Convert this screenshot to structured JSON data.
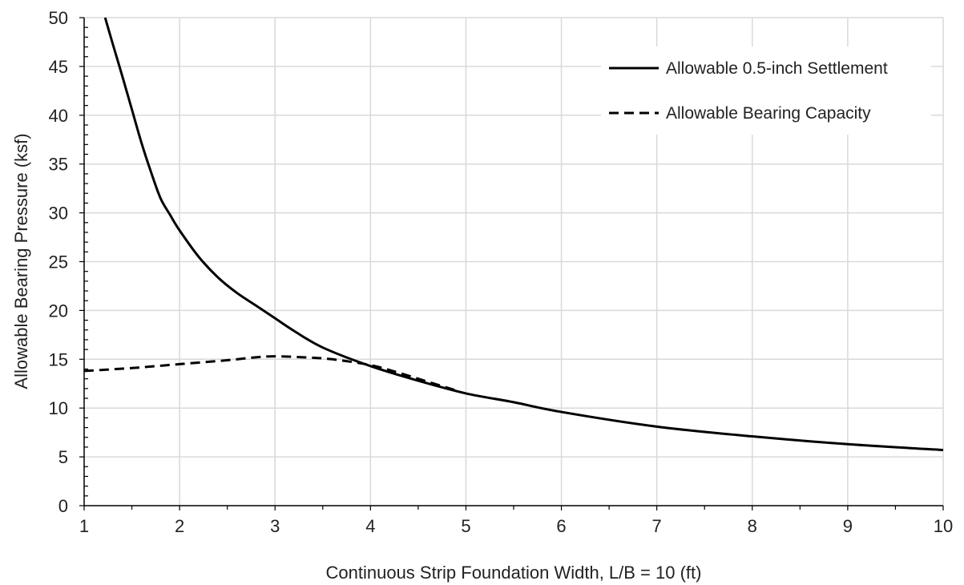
{
  "chart_data": {
    "type": "line",
    "title": "",
    "xlabel": "Continuous Strip Foundation Width, L/B = 10 (ft)",
    "ylabel": "Allowable Bearing Pressure (ksf)",
    "xlim": [
      1,
      10
    ],
    "ylim": [
      0,
      50
    ],
    "x_ticks": [
      "1",
      "2",
      "3",
      "4",
      "5",
      "6",
      "7",
      "8",
      "9",
      "10"
    ],
    "y_ticks": [
      "0",
      "5",
      "10",
      "15",
      "20",
      "25",
      "30",
      "35",
      "40",
      "45",
      "50"
    ],
    "grid": true,
    "legend_position": "top-right",
    "series": [
      {
        "name": "Allowable 0.5-inch Settlement",
        "style": "solid",
        "color": "#000000",
        "x": [
          1.22,
          1.3,
          1.4,
          1.5,
          1.6,
          1.7,
          1.8,
          1.9,
          2.0,
          2.2,
          2.4,
          2.6,
          2.8,
          3.0,
          3.2,
          3.5,
          4.0,
          4.5,
          5.0,
          5.5,
          6.0,
          7.0,
          8.0,
          9.0,
          10.0
        ],
        "y": [
          50.0,
          47.3,
          44.0,
          40.6,
          37.2,
          34.2,
          31.5,
          29.8,
          28.2,
          25.5,
          23.4,
          21.8,
          20.5,
          19.2,
          17.9,
          16.2,
          14.3,
          12.8,
          11.5,
          10.6,
          9.6,
          8.1,
          7.1,
          6.3,
          5.7
        ]
      },
      {
        "name": "Allowable Bearing Capacity",
        "style": "dashed",
        "color": "#000000",
        "x": [
          1.0,
          1.5,
          2.0,
          2.5,
          2.8,
          3.0,
          3.3,
          3.6,
          4.0,
          4.3,
          4.6,
          4.9
        ],
        "y": [
          13.8,
          14.1,
          14.5,
          14.9,
          15.2,
          15.3,
          15.2,
          15.0,
          14.4,
          13.6,
          12.7,
          11.8
        ]
      }
    ]
  }
}
